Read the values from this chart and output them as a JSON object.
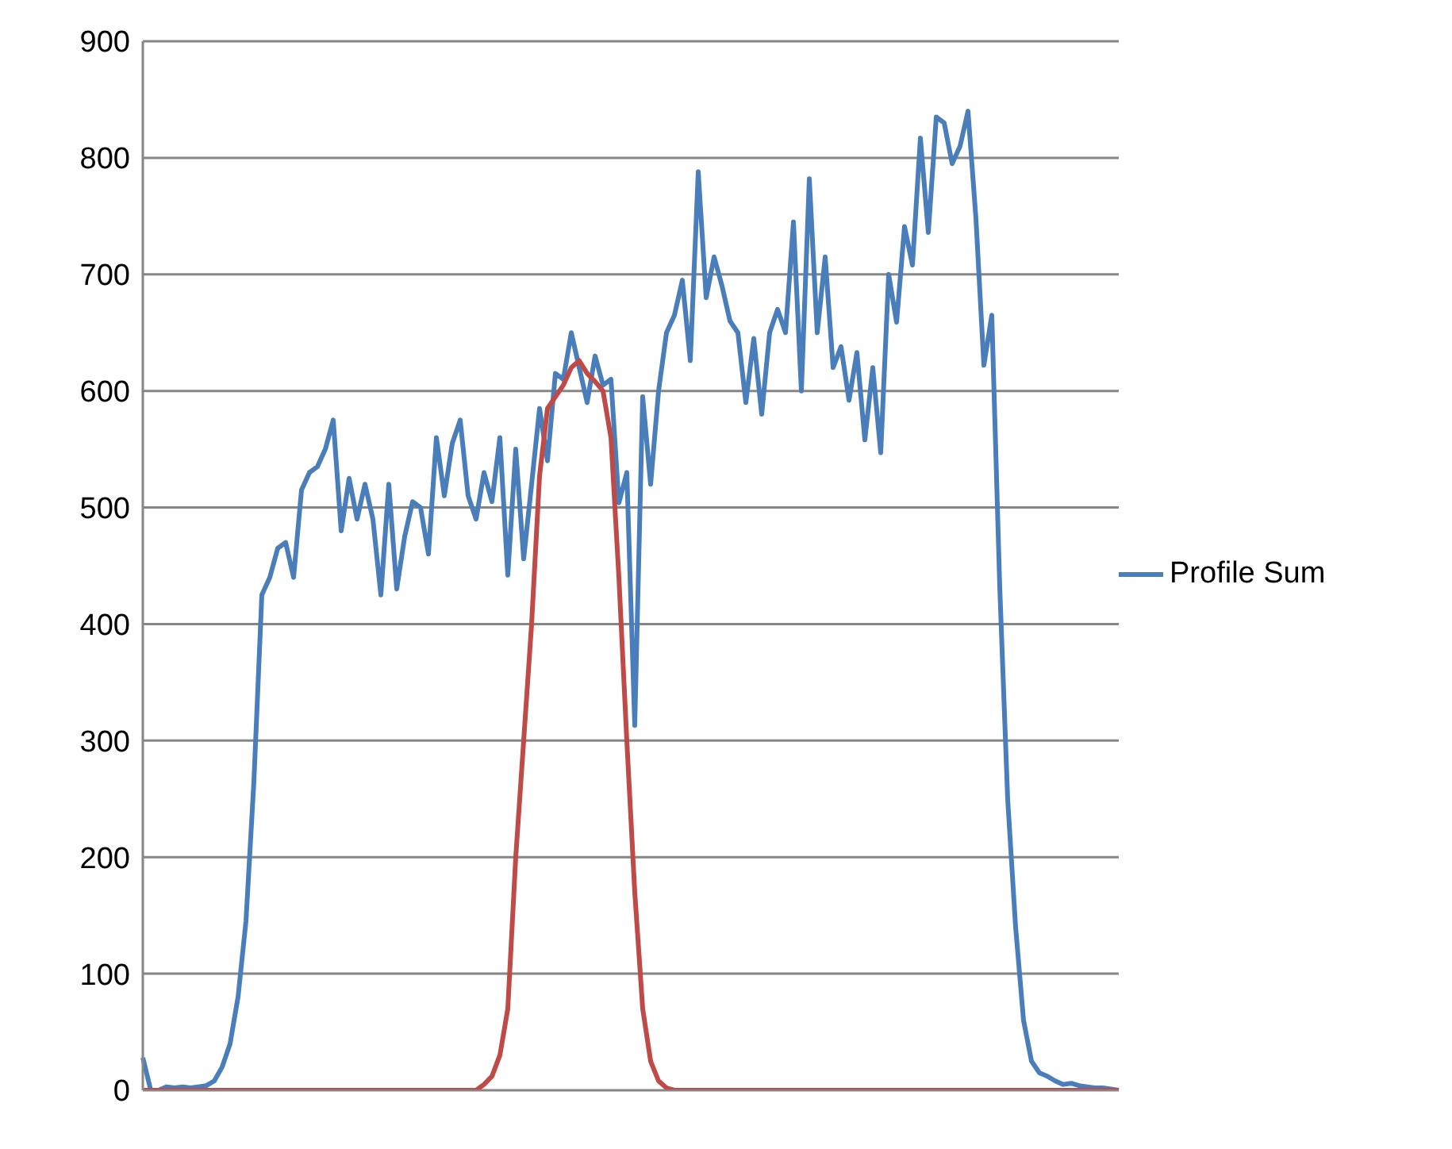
{
  "chart_data": {
    "type": "line",
    "categories": [
      null,
      null,
      null,
      null,
      null,
      null,
      null,
      null,
      null,
      null,
      null,
      null,
      null,
      null,
      null,
      null,
      null,
      null,
      null,
      null,
      null,
      null,
      null,
      null,
      null,
      null,
      null,
      null,
      null,
      null,
      null,
      null,
      null,
      null,
      null,
      null,
      null,
      null,
      null,
      null,
      null,
      null,
      null,
      null,
      null,
      null,
      null,
      null,
      null,
      null,
      null,
      null,
      null,
      null,
      null,
      null,
      null,
      null,
      null,
      null,
      null,
      null,
      null,
      null,
      null,
      null,
      null,
      null,
      null,
      null,
      null,
      null,
      null,
      null,
      null,
      null,
      null,
      null,
      null,
      null,
      null,
      null,
      null,
      null,
      null,
      null,
      null,
      null,
      null,
      null,
      null,
      null,
      null,
      null,
      null,
      null,
      null,
      null,
      null,
      null,
      null,
      null,
      null,
      null,
      null,
      null,
      null,
      null,
      null,
      null,
      null,
      null,
      null,
      null,
      null,
      null,
      null,
      null,
      null,
      null,
      null,
      null,
      null,
      null
    ],
    "series": [
      {
        "name": "Profile Sum",
        "color": "#4a7ebb",
        "values": [
          28,
          0,
          0,
          3,
          2,
          3,
          2,
          3,
          4,
          8,
          20,
          40,
          80,
          145,
          265,
          425,
          440,
          465,
          470,
          440,
          515,
          530,
          535,
          550,
          575,
          480,
          525,
          490,
          520,
          490,
          425,
          520,
          430,
          475,
          505,
          500,
          460,
          560,
          510,
          555,
          575,
          510,
          490,
          530,
          505,
          560,
          442,
          550,
          456,
          520,
          585,
          540,
          615,
          610,
          650,
          620,
          590,
          630,
          605,
          610,
          504,
          530,
          313,
          595,
          520,
          600,
          650,
          665,
          695,
          626,
          788,
          680,
          715,
          690,
          660,
          650,
          590,
          645,
          580,
          650,
          670,
          650,
          745,
          600,
          782,
          650,
          715,
          620,
          638,
          592,
          633,
          558,
          620,
          547,
          700,
          659,
          741,
          708,
          817,
          736,
          835,
          830,
          795,
          810,
          840,
          748,
          622,
          665,
          432,
          250,
          140,
          60,
          25,
          15,
          12,
          8,
          5,
          6,
          4,
          3,
          2,
          2,
          1,
          0
        ]
      },
      {
        "color": "#be4b48",
        "values": [
          0,
          0,
          0,
          0,
          0,
          0,
          0,
          0,
          0,
          0,
          0,
          0,
          0,
          0,
          0,
          0,
          0,
          0,
          0,
          0,
          0,
          0,
          0,
          0,
          0,
          0,
          0,
          0,
          0,
          0,
          0,
          0,
          0,
          0,
          0,
          0,
          0,
          0,
          0,
          0,
          0,
          0,
          0,
          5,
          12,
          30,
          70,
          200,
          300,
          400,
          527,
          585,
          595,
          605,
          620,
          626,
          615,
          608,
          600,
          560,
          440,
          300,
          170,
          70,
          25,
          8,
          2,
          0,
          0,
          0,
          0,
          0,
          0,
          0,
          0,
          0,
          0,
          0,
          0,
          0,
          0,
          0,
          0,
          0,
          0,
          0,
          0,
          0,
          0,
          0,
          0,
          0,
          0,
          0,
          0,
          0,
          0,
          0,
          0,
          0,
          0,
          0,
          0,
          0,
          0,
          0,
          0,
          0,
          0,
          0,
          0,
          0,
          0,
          0,
          0,
          0,
          0,
          0,
          0,
          0,
          0,
          0,
          0,
          0
        ]
      }
    ],
    "ylim": [
      0,
      900
    ],
    "yticks": [
      0,
      100,
      200,
      300,
      400,
      500,
      600,
      700,
      800,
      900
    ],
    "grid": "y",
    "legend": "right",
    "tick_labels": "y",
    "marker": "none",
    "line_style": "solid"
  }
}
